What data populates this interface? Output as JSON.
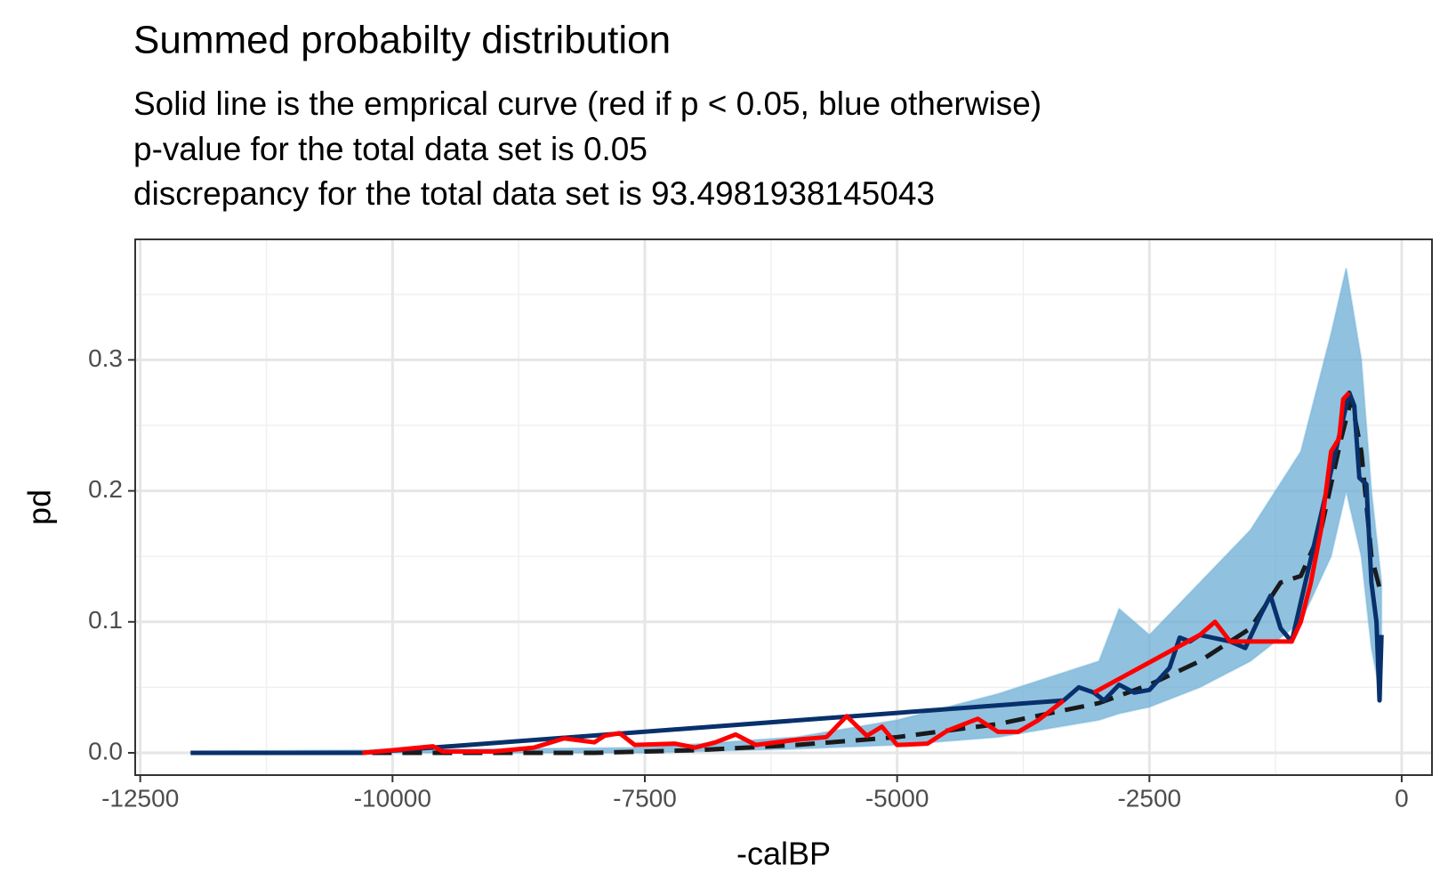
{
  "chart_data": {
    "type": "line",
    "title": "Summed probabilty distribution",
    "subtitle": [
      "Solid line is the emprical curve (red if p < 0.05, blue otherwise)",
      "p-value for the total data set is 0.05",
      "discrepancy for the total data set is 93.4981938145043"
    ],
    "x_label": "-calBP",
    "y_label": "pd",
    "xlim": [
      -12550,
      300
    ],
    "ylim": [
      -0.017,
      0.392
    ],
    "xticks": [
      -12500,
      -10000,
      -7500,
      -5000,
      -2500,
      0
    ],
    "yticks": [
      {
        "value": 0,
        "label": "0.0"
      },
      0.1,
      0.2,
      0.3
    ],
    "x_minor_grid": [
      -11250,
      -8750,
      -6250,
      -3750,
      -1250
    ],
    "y_minor_grid": [
      0.05,
      0.15,
      0.25,
      0.35
    ],
    "grid": true,
    "band": {
      "color": "#6baed6",
      "x": [
        -12000,
        -7500,
        -6000,
        -5000,
        -4000,
        -3000,
        -2800,
        -2500,
        -2000,
        -1500,
        -1000,
        -700,
        -550,
        -400,
        -300,
        -200
      ],
      "lower": [
        0,
        0,
        0.003,
        0.006,
        0.012,
        0.025,
        0.03,
        0.035,
        0.05,
        0.07,
        0.1,
        0.15,
        0.2,
        0.15,
        0.08,
        0.04
      ],
      "upper": [
        0.001,
        0.004,
        0.012,
        0.025,
        0.045,
        0.07,
        0.11,
        0.09,
        0.13,
        0.17,
        0.23,
        0.32,
        0.37,
        0.3,
        0.2,
        0.13
      ]
    },
    "series": [
      {
        "color": "#1a1a1a",
        "dashed": true,
        "x": [
          -12000,
          -8000,
          -7000,
          -6000,
          -5000,
          -4000,
          -3000,
          -2500,
          -2000,
          -1500,
          -1200,
          -1000,
          -800,
          -600,
          -500,
          -400,
          -300,
          -200
        ],
        "values": [
          0,
          0,
          0.002,
          0.006,
          0.012,
          0.022,
          0.038,
          0.052,
          0.07,
          0.095,
          0.13,
          0.135,
          0.17,
          0.24,
          0.27,
          0.23,
          0.15,
          0.12
        ]
      },
      {
        "color": "#08306b",
        "x": [
          -12000,
          -11000,
          -10300,
          -3350,
          -3200,
          -3050,
          -2950,
          -2800,
          -2650,
          -2500,
          -2300,
          -2200,
          -2100,
          -2000,
          -1700,
          -1550,
          -1400,
          -1300,
          -1200,
          -1090,
          -520,
          -470,
          -420,
          -350,
          -300,
          -250,
          -220,
          -200
        ],
        "values": [
          0,
          0,
          0,
          0.04,
          0.05,
          0.046,
          0.04,
          0.052,
          0.046,
          0.048,
          0.065,
          0.088,
          0.085,
          0.09,
          0.085,
          0.08,
          0.105,
          0.12,
          0.095,
          0.085,
          0.275,
          0.265,
          0.21,
          0.205,
          0.13,
          0.1,
          0.04,
          0.09
        ]
      },
      {
        "color": "#ff0000",
        "x": [
          -10300,
          -10000,
          -9600,
          -9500,
          -9000,
          -8600,
          -8300,
          -8000,
          -7900,
          -7750,
          -7600,
          -7200,
          -7000,
          -6800,
          -6600,
          -6400,
          -6000,
          -5700,
          -5500,
          -5300,
          -5150,
          -5000,
          -4700,
          -4500,
          -4200,
          -4000,
          -3800,
          -3600,
          -3350,
          -3200,
          -3050,
          -2000,
          -1850,
          -1700,
          -1090,
          -1000,
          -900,
          -800,
          -700,
          -620,
          -580,
          -520
        ],
        "values": [
          0,
          0.002,
          0.005,
          0.001,
          0.001,
          0.004,
          0.011,
          0.008,
          0.013,
          0.015,
          0.006,
          0.007,
          0.004,
          0.008,
          0.014,
          0.006,
          0.01,
          0.012,
          0.028,
          0.013,
          0.02,
          0.006,
          0.007,
          0.017,
          0.026,
          0.016,
          0.016,
          0.025,
          0.04,
          null,
          0.046,
          0.09,
          0.1,
          0.085,
          0.085,
          0.1,
          0.13,
          0.17,
          0.23,
          0.24,
          0.27,
          0.275
        ]
      }
    ]
  }
}
